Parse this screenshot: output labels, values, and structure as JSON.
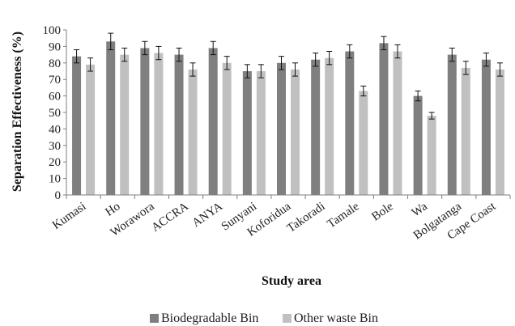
{
  "chart_data": {
    "type": "bar",
    "categories": [
      "Kumasi",
      "Ho",
      "Worawora",
      "ACCRA",
      "ANYA",
      "Sunyani",
      "Koforidua",
      "Takoradi",
      "Tamale",
      "Bole",
      "Wa",
      "Bolgatanga",
      "Cape Coast"
    ],
    "series": [
      {
        "name": "Biodegradable Bin",
        "color": "#7f7f7f",
        "values": [
          84,
          93,
          89,
          85,
          89,
          75,
          80,
          82,
          87,
          92,
          60,
          85,
          82
        ],
        "error": [
          4,
          5,
          4,
          4,
          4,
          4,
          4,
          4,
          4,
          4,
          3,
          4,
          4
        ]
      },
      {
        "name": "Other waste Bin",
        "color": "#c0c0c0",
        "values": [
          79,
          85,
          86,
          76,
          80,
          75,
          76,
          83,
          63,
          87,
          48,
          77,
          76
        ],
        "error": [
          4,
          4,
          4,
          4,
          4,
          4,
          4,
          4,
          3,
          4,
          2,
          4,
          4
        ]
      }
    ],
    "xlabel": "Study area",
    "ylabel": "Separation Effectiveness (%)",
    "ylim": [
      0,
      100
    ],
    "yticks": [
      0,
      10,
      20,
      30,
      40,
      50,
      60,
      70,
      80,
      90,
      100
    ],
    "grid": false,
    "legend_position": "bottom"
  }
}
